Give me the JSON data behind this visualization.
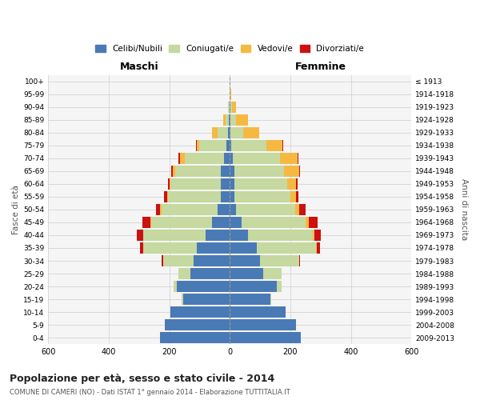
{
  "age_groups": [
    "100+",
    "95-99",
    "90-94",
    "85-89",
    "80-84",
    "75-79",
    "70-74",
    "65-69",
    "60-64",
    "55-59",
    "50-54",
    "45-49",
    "40-44",
    "35-39",
    "30-34",
    "25-29",
    "20-24",
    "15-19",
    "10-14",
    "5-9",
    "0-4"
  ],
  "birth_years": [
    "≤ 1913",
    "1914-1918",
    "1919-1923",
    "1924-1928",
    "1929-1933",
    "1934-1938",
    "1939-1943",
    "1944-1948",
    "1949-1953",
    "1954-1958",
    "1959-1963",
    "1964-1968",
    "1969-1973",
    "1974-1978",
    "1979-1983",
    "1984-1988",
    "1989-1993",
    "1994-1998",
    "1999-2003",
    "2004-2008",
    "2009-2013"
  ],
  "maschi": {
    "celibi": [
      0,
      0,
      1,
      2,
      5,
      10,
      20,
      30,
      30,
      30,
      40,
      60,
      80,
      110,
      120,
      130,
      175,
      155,
      195,
      215,
      230
    ],
    "coniugati": [
      0,
      0,
      4,
      12,
      35,
      90,
      130,
      150,
      165,
      175,
      185,
      200,
      205,
      175,
      100,
      40,
      10,
      3,
      0,
      0,
      0
    ],
    "vedovi": [
      0,
      0,
      2,
      8,
      20,
      10,
      15,
      8,
      5,
      3,
      5,
      3,
      2,
      2,
      0,
      0,
      0,
      0,
      0,
      0,
      0
    ],
    "divorziati": [
      0,
      0,
      0,
      0,
      0,
      2,
      5,
      5,
      5,
      10,
      15,
      25,
      20,
      10,
      5,
      0,
      0,
      0,
      0,
      0,
      0
    ]
  },
  "femmine": {
    "nubili": [
      0,
      0,
      1,
      2,
      3,
      5,
      10,
      15,
      15,
      15,
      20,
      40,
      60,
      90,
      100,
      110,
      155,
      135,
      185,
      220,
      235
    ],
    "coniugate": [
      0,
      2,
      5,
      18,
      40,
      115,
      155,
      165,
      175,
      185,
      195,
      210,
      215,
      195,
      130,
      60,
      15,
      3,
      0,
      0,
      0
    ],
    "vedove": [
      0,
      3,
      15,
      40,
      55,
      55,
      60,
      50,
      30,
      20,
      15,
      10,
      5,
      3,
      0,
      0,
      0,
      0,
      0,
      0,
      0
    ],
    "divorziate": [
      0,
      0,
      0,
      0,
      0,
      2,
      3,
      3,
      5,
      8,
      20,
      30,
      20,
      10,
      3,
      0,
      0,
      0,
      0,
      0,
      0
    ]
  },
  "colors": {
    "celibi": "#4a7ab5",
    "coniugati": "#c5d9a0",
    "vedovi": "#f5b942",
    "divorziati": "#cc1111"
  },
  "legend_labels": [
    "Celibi/Nubili",
    "Coniugati/e",
    "Vedovi/e",
    "Divorziati/e"
  ],
  "title": "Popolazione per età, sesso e stato civile - 2014",
  "subtitle": "COMUNE DI CAMERI (NO) - Dati ISTAT 1° gennaio 2014 - Elaborazione TUTTITALIA.IT",
  "header_left": "Maschi",
  "header_right": "Femmine",
  "ylabel_left": "Fasce di età",
  "ylabel_right": "Anni di nascita",
  "xlim": 600,
  "bg_color": "#ffffff",
  "grid_color": "#cccccc",
  "plot_bg": "#f5f5f5"
}
